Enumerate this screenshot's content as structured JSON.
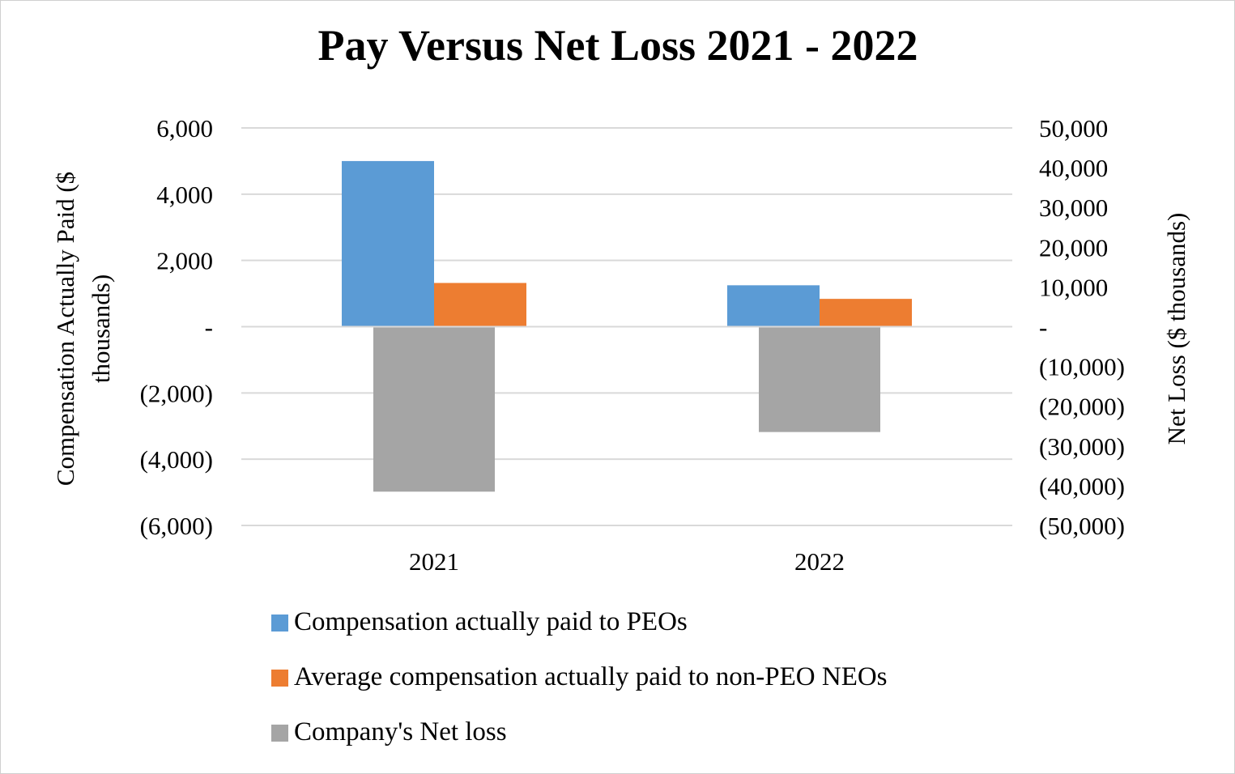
{
  "chart_data": {
    "type": "bar",
    "title": "Pay Versus Net Loss 2021 - 2022",
    "categories": [
      "2021",
      "2022"
    ],
    "y_left": {
      "label_lines": [
        "Compensation Actually Paid ($",
        "thousands)"
      ],
      "ylim": [
        -6000,
        6000
      ],
      "ticks": [
        6000,
        4000,
        2000,
        0,
        -2000,
        -4000,
        -6000
      ],
      "tick_labels": [
        "6,000",
        "4,000",
        "2,000",
        "-",
        "(2,000)",
        "(4,000)",
        "(6,000)"
      ]
    },
    "y_right": {
      "label": "Net Loss ($ thousands)",
      "ylim": [
        -50000,
        50000
      ],
      "ticks": [
        50000,
        40000,
        30000,
        20000,
        10000,
        0,
        -10000,
        -20000,
        -30000,
        -40000,
        -50000
      ],
      "tick_labels": [
        "50,000",
        "40,000",
        "30,000",
        "20,000",
        "10,000",
        "-",
        "(10,000)",
        "(20,000)",
        "(30,000)",
        "(40,000)",
        "(50,000)"
      ]
    },
    "series": [
      {
        "name": "Compensation actually paid to PEOs",
        "axis": "left",
        "color": "#5B9BD5",
        "values": [
          5000,
          1250
        ]
      },
      {
        "name": "Average compensation actually paid to non-PEO NEOs",
        "axis": "left",
        "color": "#ED7D31",
        "values": [
          1320,
          840
        ]
      },
      {
        "name": "Company's Net loss",
        "axis": "right",
        "color": "#A5A5A5",
        "values": [
          -41500,
          -26500
        ]
      }
    ],
    "legend_position": "bottom",
    "grid": true
  }
}
